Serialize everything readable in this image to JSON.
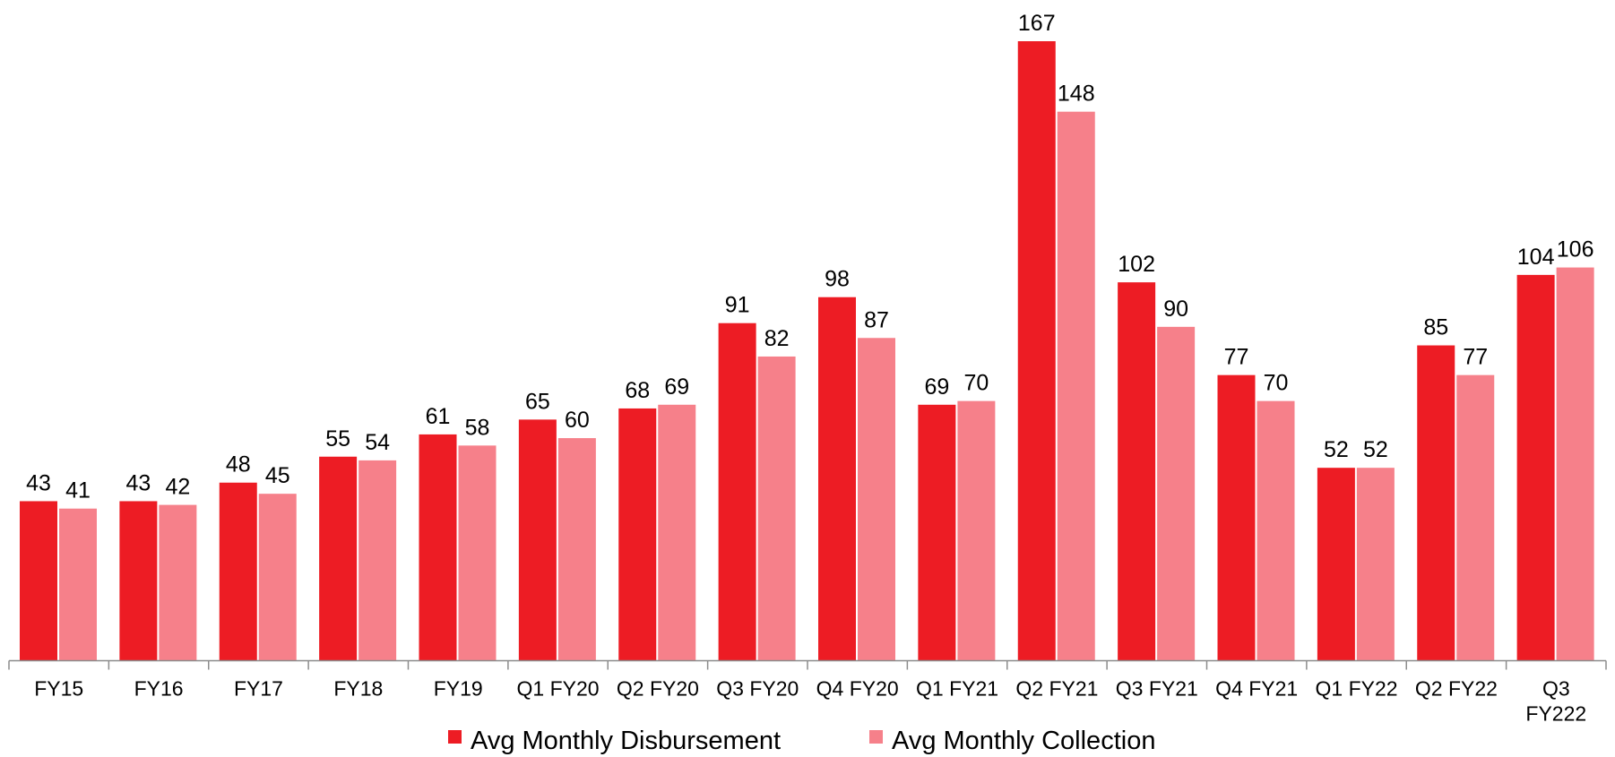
{
  "chart_data": {
    "type": "bar",
    "categories": [
      [
        "FY15"
      ],
      [
        "FY16"
      ],
      [
        "FY17"
      ],
      [
        "FY18"
      ],
      [
        "FY19"
      ],
      [
        "Q1 FY20"
      ],
      [
        "Q2 FY20"
      ],
      [
        "Q3 FY20"
      ],
      [
        "Q4 FY20"
      ],
      [
        "Q1 FY21"
      ],
      [
        "Q2 FY21"
      ],
      [
        "Q3 FY21"
      ],
      [
        "Q4 FY21"
      ],
      [
        "Q1 FY22"
      ],
      [
        "Q2 FY22"
      ],
      [
        "Q3",
        "FY222"
      ]
    ],
    "series": [
      {
        "name": "Avg Monthly Disbursement",
        "color": "#ED1C24",
        "values": [
          43,
          43,
          48,
          55,
          61,
          65,
          68,
          91,
          98,
          69,
          167,
          102,
          77,
          52,
          85,
          104
        ]
      },
      {
        "name": "Avg Monthly Collection",
        "color": "#F6808A",
        "values": [
          41,
          42,
          45,
          54,
          58,
          60,
          69,
          82,
          87,
          70,
          148,
          90,
          70,
          52,
          77,
          106
        ]
      }
    ],
    "ylim": [
      0,
      167
    ],
    "grid": false,
    "legend": "bottom-center",
    "data_labels": true
  }
}
